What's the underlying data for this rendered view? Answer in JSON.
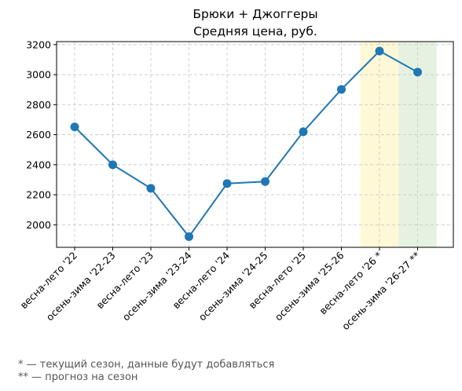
{
  "chart_data": {
    "type": "line",
    "title": [
      "Брюки + Джоггеры",
      "Средняя цена, руб."
    ],
    "xlabel": "",
    "ylabel": "",
    "categories": [
      "весна-лето '22",
      "осень-зима '22-23",
      "весна-лето '23",
      "осень-зима '23-24",
      "весна-лето '24",
      "осень-зима '24-25",
      "весна-лето '25",
      "осень-зима '25-26",
      "весна-лето '26 *",
      "осень-зима '26-27 **"
    ],
    "values": [
      2652,
      2400,
      2243,
      1921,
      2275,
      2288,
      2620,
      2902,
      3157,
      3017
    ],
    "ylim": [
      1850,
      3220
    ],
    "yticks": [
      2000,
      2200,
      2400,
      2600,
      2800,
      3000,
      3200
    ],
    "grid": true,
    "line_color": "#1f77b4",
    "highlights": [
      {
        "category_index": 8,
        "meaning": "current season",
        "color": "#fff8d6"
      },
      {
        "category_index": 9,
        "meaning": "forecast",
        "color": "#e6f2e1"
      }
    ]
  },
  "footnotes": [
    "* — текущий сезон, данные будут добавляться",
    "** — прогноз на сезон"
  ]
}
